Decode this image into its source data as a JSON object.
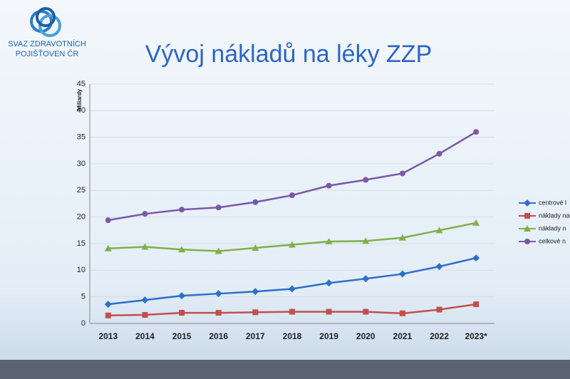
{
  "logo": {
    "lines": [
      "SVAZ ZDRAVOTNÍCH",
      "POJIŠŤOVEN ČR"
    ]
  },
  "chart_data": {
    "type": "line",
    "title": "Vývoj nákladů na léky ZZP",
    "y_label": "Miliardy",
    "categories": [
      "2013",
      "2014",
      "2015",
      "2016",
      "2017",
      "2018",
      "2019",
      "2020",
      "2021",
      "2022",
      "2023*"
    ],
    "ylim": [
      0,
      45
    ],
    "yticks": [
      0,
      5,
      10,
      15,
      20,
      25,
      30,
      35,
      40,
      45
    ],
    "grid": true,
    "legend": "right",
    "series": [
      {
        "name": "centrové l",
        "color": "#2e6fc9",
        "marker": "diamond",
        "values": [
          3.6,
          4.4,
          5.2,
          5.6,
          6.0,
          6.5,
          7.6,
          8.4,
          9.3,
          10.7,
          12.3
        ]
      },
      {
        "name": "náklady na",
        "color": "#c0504d",
        "marker": "square",
        "values": [
          1.5,
          1.6,
          2.0,
          2.0,
          2.1,
          2.2,
          2.2,
          2.2,
          1.9,
          2.6,
          3.6
        ]
      },
      {
        "name": "náklady n",
        "color": "#7fb04a",
        "marker": "triangle",
        "values": [
          14.1,
          14.4,
          13.9,
          13.6,
          14.2,
          14.8,
          15.4,
          15.5,
          16.1,
          17.5,
          18.9
        ]
      },
      {
        "name": "celkové n",
        "color": "#7a58a8",
        "marker": "circle",
        "values": [
          19.4,
          20.6,
          21.4,
          21.8,
          22.8,
          24.1,
          25.9,
          27.0,
          28.2,
          31.9,
          36.0
        ]
      }
    ]
  }
}
